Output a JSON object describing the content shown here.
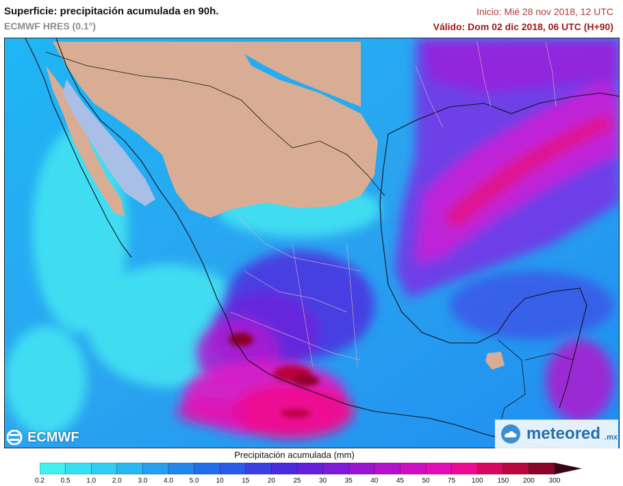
{
  "header": {
    "title": "Superficie: precipitación acumulada en 90h.",
    "model": "ECMWF HRES (0.1°)",
    "init": "Inicio: Mié 28 nov 2018, 12 UTC",
    "valid": "Válido: Dom 02 dic 2018, 06 UTC (H+90)"
  },
  "map": {
    "region": "Mexico and Gulf of Mexico",
    "layers": [
      "precipitation-field",
      "land-no-precip",
      "coastlines",
      "country-borders",
      "state-borders"
    ]
  },
  "logos": {
    "left": "ECMWF",
    "right": "meteored",
    "right_suffix": ".mx"
  },
  "legend": {
    "title": "Precipitación acumulada (mm)",
    "labels": [
      "0.2",
      "0.5",
      "1.0",
      "2.0",
      "3.0",
      "4.0",
      "5.0",
      "10",
      "15",
      "20",
      "25",
      "30",
      "35",
      "40",
      "45",
      "50",
      "75",
      "100",
      "150",
      "200",
      "300"
    ],
    "colors": [
      "#41f0f0",
      "#36e0f4",
      "#2ecdf6",
      "#28b8f4",
      "#259ff2",
      "#2286ef",
      "#206eec",
      "#2a5ae8",
      "#3a3fe4",
      "#4a2ae0",
      "#6420dc",
      "#7e1ad8",
      "#9a14d2",
      "#b510cc",
      "#cf0ec4",
      "#e40cb4",
      "#ee0a90",
      "#d8085e",
      "#b8063e",
      "#8a0428"
    ]
  }
}
